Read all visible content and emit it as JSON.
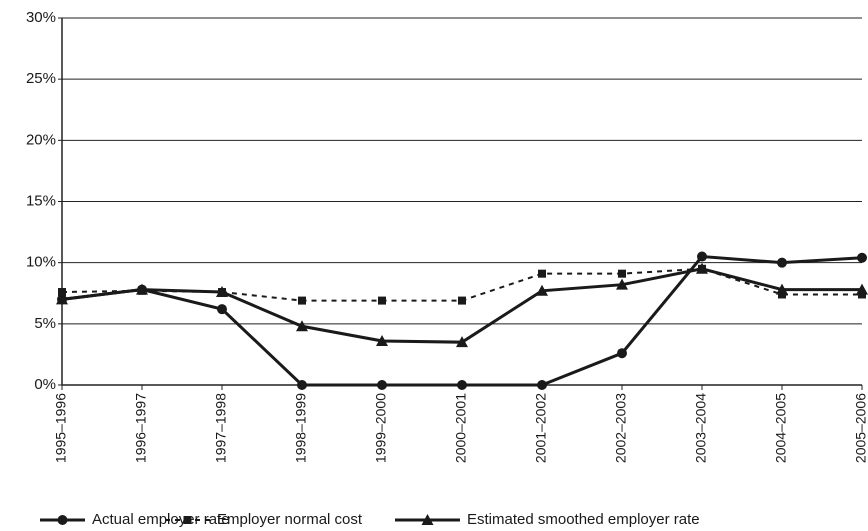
{
  "chart_data": {
    "type": "line",
    "categories": [
      "1995–1996",
      "1996–1997",
      "1997–1998",
      "1998–1999",
      "1999–2000",
      "2000–2001",
      "2001–2002",
      "2002–2003",
      "2003–2004",
      "2004–2005",
      "2005–2006"
    ],
    "series": [
      {
        "name": "Actual employer rate",
        "color": "#1a1a1a",
        "marker": "circle",
        "dashed": false,
        "values": [
          7.0,
          7.8,
          6.2,
          0,
          0,
          0,
          0,
          2.6,
          10.5,
          10.0,
          10.4
        ]
      },
      {
        "name": "Employer normal cost",
        "color": "#1a1a1a",
        "marker": "square",
        "dashed": true,
        "values": [
          7.6,
          7.7,
          7.6,
          6.9,
          6.9,
          6.9,
          9.1,
          9.1,
          9.5,
          7.4,
          7.4
        ]
      },
      {
        "name": "Estimated smoothed employer rate",
        "color": "#1a1a1a",
        "marker": "triangle",
        "dashed": false,
        "values": [
          7.0,
          7.8,
          7.6,
          4.8,
          3.6,
          3.5,
          7.7,
          8.2,
          9.5,
          7.8,
          7.8
        ]
      }
    ],
    "ylim": [
      0,
      30
    ],
    "yticks": [
      {
        "value": 0,
        "label": "0%"
      },
      {
        "value": 5,
        "label": "5%"
      },
      {
        "value": 10,
        "label": "10%"
      },
      {
        "value": 15,
        "label": "15%"
      },
      {
        "value": 20,
        "label": "20%"
      },
      {
        "value": 25,
        "label": "25%"
      },
      {
        "value": 30,
        "label": "30%"
      }
    ],
    "grid": true,
    "legend": "bottom"
  }
}
